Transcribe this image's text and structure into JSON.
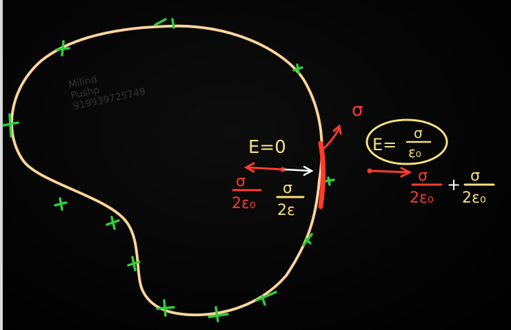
{
  "watermark": {
    "line1": "Milind",
    "line2": "Pushp",
    "line3": "919939725749"
  },
  "inside_field": {
    "expression": "E=0",
    "left_numerator": "σ",
    "left_denominator": "2ε₀",
    "right_numerator": "σ",
    "right_denominator": "2ε"
  },
  "surface_charge": {
    "label": "σ"
  },
  "outside_field": {
    "boxed_lhs": "E=",
    "boxed_numerator": "σ",
    "boxed_denominator": "ε₀",
    "term1_numerator": "σ",
    "term1_denominator": "2ε₀",
    "plus": "+",
    "term2_numerator": "σ",
    "term2_denominator": "2ε₀"
  },
  "colors": {
    "board": "#000000",
    "conductor_outline": "#f5c98a",
    "charge_marks": "#2fcf3a",
    "chalk_yellow": "#f6e27a",
    "chalk_red": "#ff3b2e",
    "chalk_white": "#ffffff"
  }
}
